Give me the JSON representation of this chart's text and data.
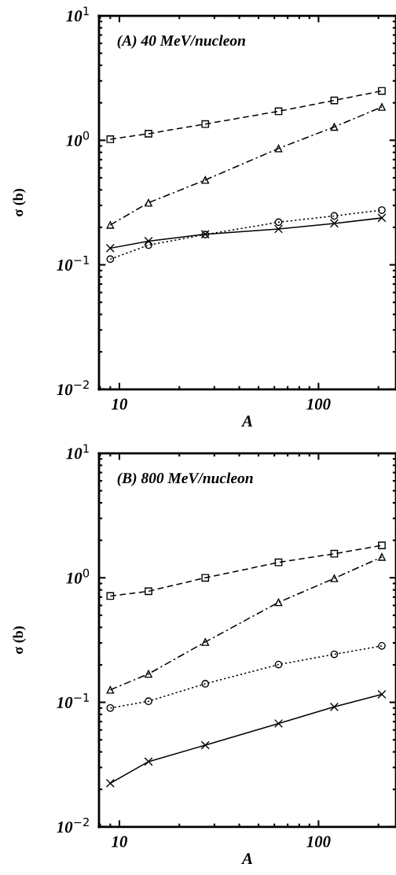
{
  "chart_data": [
    {
      "type": "line",
      "annotations": [
        "(A) 40 MeV/nucleon"
      ],
      "xlabel": "A",
      "ylabel": "σ (b)",
      "log": "xy",
      "grid": false,
      "legend": false,
      "xlim": [
        7.9,
        245
      ],
      "ylim": [
        0.01,
        10
      ],
      "xticks": [
        10,
        100
      ],
      "yticks": [
        {
          "value": 0.01,
          "label": "10$^{−2}$"
        },
        {
          "value": 0.1,
          "label": "10$^{−1}$"
        },
        {
          "value": 1,
          "label": "10$^{0}$"
        },
        {
          "value": 10,
          "label": "10$^{1}$"
        }
      ],
      "x": [
        9,
        14,
        27,
        63,
        120,
        208
      ],
      "series": [
        {
          "color": "#000000",
          "marker": "square",
          "line_style": "dashed",
          "values": [
            1.02,
            1.13,
            1.35,
            1.71,
            2.09,
            2.49
          ]
        },
        {
          "color": "#000000",
          "marker": "triangle",
          "line_style": "dashdot",
          "values": [
            0.209,
            0.315,
            0.48,
            0.86,
            1.28,
            1.85
          ]
        },
        {
          "color": "#000000",
          "marker": "circle",
          "line_style": "dotted",
          "values": [
            0.111,
            0.144,
            0.175,
            0.22,
            0.247,
            0.275
          ]
        },
        {
          "color": "#000000",
          "marker": "cross",
          "line_style": "solid",
          "values": [
            0.136,
            0.155,
            0.176,
            0.194,
            0.215,
            0.238
          ]
        }
      ]
    },
    {
      "type": "line",
      "annotations": [
        "(B) 800 MeV/nucleon"
      ],
      "xlabel": "A",
      "ylabel": "σ (b)",
      "log": "xy",
      "grid": false,
      "legend": false,
      "xlim": [
        7.9,
        245
      ],
      "ylim": [
        0.01,
        10
      ],
      "xticks": [
        10,
        100
      ],
      "yticks": [
        {
          "value": 0.01,
          "label": "10$^{−2}$"
        },
        {
          "value": 0.1,
          "label": "10$^{−1}$"
        },
        {
          "value": 1,
          "label": "10$^{0}$"
        },
        {
          "value": 10,
          "label": "10$^{1}$"
        }
      ],
      "x": [
        9,
        14,
        27,
        63,
        120,
        208
      ],
      "series": [
        {
          "color": "#000000",
          "marker": "square",
          "line_style": "dashed",
          "values": [
            0.714,
            0.78,
            1.0,
            1.33,
            1.56,
            1.82
          ]
        },
        {
          "color": "#000000",
          "marker": "triangle",
          "line_style": "dashdot",
          "values": [
            0.126,
            0.169,
            0.305,
            0.635,
            0.99,
            1.47
          ]
        },
        {
          "color": "#000000",
          "marker": "circle",
          "line_style": "dotted",
          "values": [
            0.09,
            0.102,
            0.141,
            0.201,
            0.243,
            0.284
          ]
        },
        {
          "color": "#000000",
          "marker": "cross",
          "line_style": "solid",
          "values": [
            0.0224,
            0.0334,
            0.0453,
            0.0676,
            0.092,
            0.116
          ]
        }
      ]
    }
  ]
}
